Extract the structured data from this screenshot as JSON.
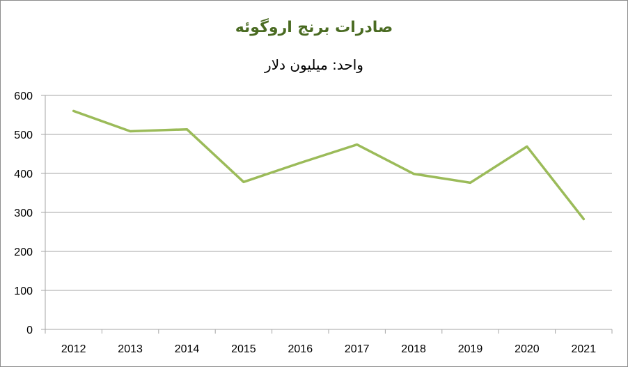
{
  "chart_data": {
    "type": "line",
    "title": "صادرات برنج اروگوئه",
    "subtitle": "واحد: میلیون دلار",
    "categories": [
      "2012",
      "2013",
      "2014",
      "2015",
      "2016",
      "2017",
      "2018",
      "2019",
      "2020",
      "2021"
    ],
    "series": [
      {
        "values": [
          560,
          508,
          513,
          378,
          427,
          474,
          399,
          376,
          469,
          283
        ],
        "color": "#9bbb59"
      }
    ],
    "ylim": [
      0,
      600
    ],
    "yticks": [
      0,
      100,
      200,
      300,
      400,
      500,
      600
    ],
    "grid": true,
    "gridColor": "#a6a6a6"
  }
}
